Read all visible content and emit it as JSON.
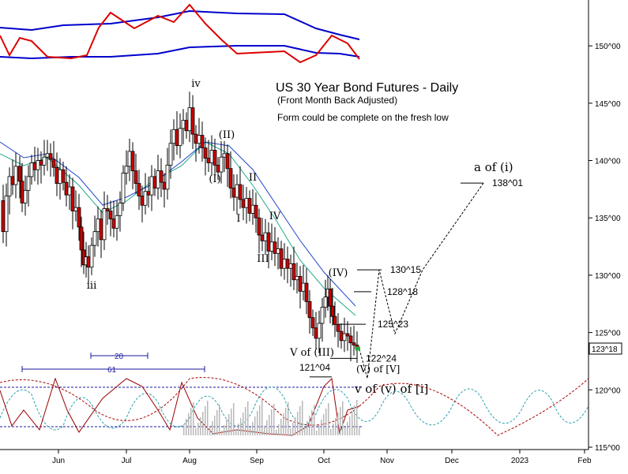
{
  "chart_data": {
    "type": "candlestick",
    "title": "US 30 Year Bond Futures - Daily",
    "subtitle": "(Front Month Back Adjusted)",
    "note": "Form could be complete on the fresh low",
    "y_axis": {
      "ylim": [
        115,
        154
      ],
      "ticks": [
        {
          "value": 115,
          "label": "115^00"
        },
        {
          "value": 120,
          "label": "120^00"
        },
        {
          "value": 125,
          "label": "125^00"
        },
        {
          "value": 130,
          "label": "130^00"
        },
        {
          "value": 135,
          "label": "135^00"
        },
        {
          "value": 140,
          "label": "140^00"
        },
        {
          "value": 145,
          "label": "145^00"
        },
        {
          "value": 150,
          "label": "150^00"
        }
      ],
      "last_price_label": "123^18",
      "last_price": 123.56
    },
    "x_axis": {
      "labels": [
        "Jun",
        "Jul",
        "Aug",
        "Sep",
        "Oct",
        "Nov",
        "Dec",
        "2023",
        "Feb"
      ]
    },
    "price_path": [
      [
        0,
        136.5
      ],
      [
        4,
        133.8
      ],
      [
        8,
        136.9
      ],
      [
        12,
        138.6
      ],
      [
        16,
        137.9
      ],
      [
        20,
        139.5
      ],
      [
        25,
        138.2
      ],
      [
        28,
        136.3
      ],
      [
        32,
        137.4
      ],
      [
        36,
        138.6
      ],
      [
        40,
        139.8
      ],
      [
        44,
        139.2
      ],
      [
        48,
        140.0
      ],
      [
        52,
        139.6
      ],
      [
        56,
        140.3
      ],
      [
        60,
        140.6
      ],
      [
        64,
        140.1
      ],
      [
        68,
        139.4
      ],
      [
        72,
        138.0
      ],
      [
        76,
        139.2
      ],
      [
        80,
        138.1
      ],
      [
        84,
        137.0
      ],
      [
        88,
        137.7
      ],
      [
        92,
        135.6
      ],
      [
        96,
        135.9
      ],
      [
        100,
        134.2
      ],
      [
        103,
        132.2
      ],
      [
        106,
        130.9
      ],
      [
        109,
        131.6
      ],
      [
        112,
        130.7
      ],
      [
        116,
        132.6
      ],
      [
        120,
        133.8
      ],
      [
        124,
        134.9
      ],
      [
        128,
        133.1
      ],
      [
        132,
        135.8
      ],
      [
        136,
        135.6
      ],
      [
        140,
        134.9
      ],
      [
        144,
        134.1
      ],
      [
        148,
        135.2
      ],
      [
        152,
        136.3
      ],
      [
        156,
        138.9
      ],
      [
        160,
        139.5
      ],
      [
        164,
        140.8
      ],
      [
        168,
        139.1
      ],
      [
        172,
        138.0
      ],
      [
        176,
        136.9
      ],
      [
        180,
        136.1
      ],
      [
        184,
        137.3
      ],
      [
        188,
        137.0
      ],
      [
        192,
        138.6
      ],
      [
        196,
        137.6
      ],
      [
        200,
        139.1
      ],
      [
        204,
        138.1
      ],
      [
        208,
        137.5
      ],
      [
        212,
        139.6
      ],
      [
        216,
        141.5
      ],
      [
        220,
        142.7
      ],
      [
        224,
        141.3
      ],
      [
        228,
        142.8
      ],
      [
        232,
        143.5
      ],
      [
        236,
        142.6
      ],
      [
        240,
        144.6
      ],
      [
        244,
        142.3
      ],
      [
        248,
        141.5
      ],
      [
        252,
        142.2
      ],
      [
        256,
        141.1
      ],
      [
        260,
        140.2
      ],
      [
        264,
        139.8
      ],
      [
        268,
        140.9
      ],
      [
        272,
        139.6
      ],
      [
        276,
        139.0
      ],
      [
        280,
        140.3
      ],
      [
        284,
        140.6
      ],
      [
        288,
        139.3
      ],
      [
        292,
        137.6
      ],
      [
        296,
        136.8
      ],
      [
        300,
        137.9
      ],
      [
        304,
        136.6
      ],
      [
        308,
        135.9
      ],
      [
        312,
        136.7
      ],
      [
        316,
        135.4
      ],
      [
        320,
        136.1
      ],
      [
        324,
        135.0
      ],
      [
        328,
        133.5
      ],
      [
        332,
        133.0
      ],
      [
        336,
        133.7
      ],
      [
        340,
        132.1
      ],
      [
        344,
        132.9
      ],
      [
        348,
        131.9
      ],
      [
        352,
        132.3
      ],
      [
        356,
        130.6
      ],
      [
        360,
        131.4
      ],
      [
        364,
        130.6
      ],
      [
        368,
        131.0
      ],
      [
        372,
        129.6
      ],
      [
        376,
        129.9
      ],
      [
        380,
        128.6
      ],
      [
        384,
        129.3
      ],
      [
        388,
        127.7
      ],
      [
        392,
        126.3
      ],
      [
        396,
        125.4
      ],
      [
        400,
        124.5
      ],
      [
        404,
        125.8
      ],
      [
        408,
        127.2
      ],
      [
        412,
        128.1
      ],
      [
        415,
        128.8
      ],
      [
        418,
        127.3
      ],
      [
        421,
        126.4
      ],
      [
        424,
        125.7
      ],
      [
        428,
        125.1
      ],
      [
        432,
        124.3
      ],
      [
        436,
        124.9
      ],
      [
        440,
        124.7
      ],
      [
        444,
        124.1
      ],
      [
        448,
        123.9
      ],
      [
        452,
        123.56
      ]
    ],
    "waves": [
      {
        "label": "iii",
        "price": 130.6
      },
      {
        "label": "iv",
        "price": 145.5
      },
      {
        "label": "(I)",
        "price": 139.0
      },
      {
        "label": "(II)",
        "price": 141.5
      },
      {
        "label": "I",
        "price": 134.5
      },
      {
        "label": "II",
        "price": 138.0
      },
      {
        "label": "III",
        "price": 132.0
      },
      {
        "label": "IV",
        "price": 134.7
      },
      {
        "label": "(IV)",
        "price": 130.0
      },
      {
        "label": "V of (III)",
        "price": 124.0
      }
    ],
    "levels": [
      {
        "label": "138^01",
        "price": 138.03
      },
      {
        "label": "130^15",
        "price": 130.47
      },
      {
        "label": "128^18",
        "price": 128.56
      },
      {
        "label": "125^23",
        "price": 125.72
      },
      {
        "label": "122^24",
        "price": 122.75
      },
      {
        "label": "121^04",
        "price": 121.13
      }
    ],
    "projection_labels": [
      "a of (i)",
      "(V) of [V]",
      "v of (v) of [i]"
    ],
    "projection_path": [
      [
        455,
        123.56
      ],
      [
        465,
        121.0
      ],
      [
        480,
        130.47
      ],
      [
        500,
        124.9
      ],
      [
        535,
        130.47
      ],
      [
        612,
        138.03
      ]
    ],
    "cycle_markers": [
      {
        "label": "20"
      },
      {
        "label": "61"
      }
    ]
  }
}
